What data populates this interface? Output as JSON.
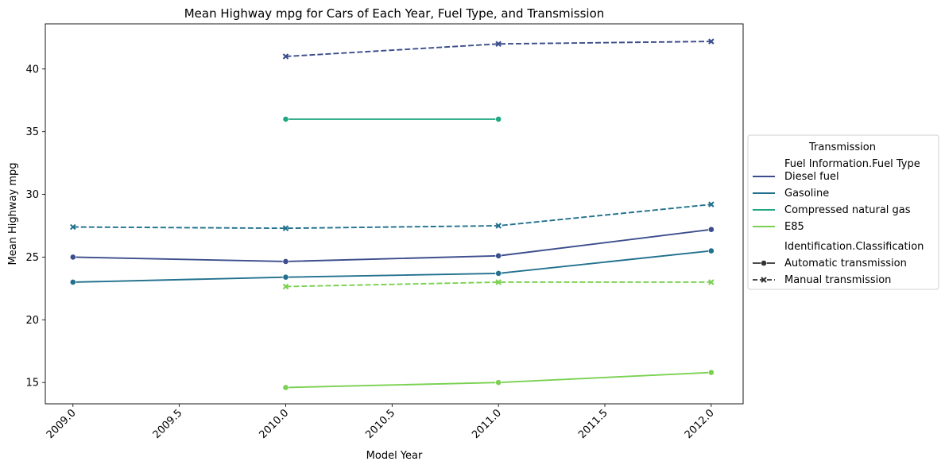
{
  "chart_data": {
    "type": "line",
    "title": "Mean Highway mpg for Cars of Each Year, Fuel Type, and Transmission",
    "xlabel": "Model Year",
    "ylabel": "Mean Highway mpg",
    "xlim": [
      2008.87,
      2012.15
    ],
    "ylim": [
      13.3,
      43.6
    ],
    "x_ticks": [
      2009.0,
      2009.5,
      2010.0,
      2010.5,
      2011.0,
      2011.5,
      2012.0
    ],
    "x_tick_labels": [
      "2009.0",
      "2009.5",
      "2010.0",
      "2010.5",
      "2011.0",
      "2011.5",
      "2012.0"
    ],
    "y_ticks": [
      15,
      20,
      25,
      30,
      35,
      40
    ],
    "y_tick_labels": [
      "15",
      "20",
      "25",
      "30",
      "35",
      "40"
    ],
    "grid": false,
    "legend": {
      "placement": "outside-right",
      "title": "Transmission",
      "hue_title": "Fuel Information.Fuel Type",
      "hue_entries": [
        {
          "label": "Diesel fuel",
          "color": "#3b4d8c"
        },
        {
          "label": "Gasoline",
          "color": "#21718e"
        },
        {
          "label": "Compressed natural gas",
          "color": "#1fa882"
        },
        {
          "label": "E85",
          "color": "#7ad151"
        }
      ],
      "style_title": "Identification.Classification",
      "style_entries": [
        {
          "label": "Automatic transmission",
          "dash": "solid",
          "marker": "circle"
        },
        {
          "label": "Manual transmission",
          "dash": "dashed",
          "marker": "x"
        }
      ]
    },
    "series": [
      {
        "fuel": "Diesel fuel",
        "transmission": "Automatic transmission",
        "color": "#3b4d8c",
        "dash": "solid",
        "marker": "circle",
        "points": [
          [
            2009,
            25.0
          ],
          [
            2010,
            24.65
          ],
          [
            2011,
            25.1
          ],
          [
            2012,
            27.2
          ]
        ]
      },
      {
        "fuel": "Diesel fuel",
        "transmission": "Manual transmission",
        "color": "#3b4d8c",
        "dash": "dashed",
        "marker": "x",
        "points": [
          [
            2010,
            41.0
          ],
          [
            2011,
            42.0
          ],
          [
            2012,
            42.2
          ]
        ]
      },
      {
        "fuel": "Gasoline",
        "transmission": "Automatic transmission",
        "color": "#21718e",
        "dash": "solid",
        "marker": "circle",
        "points": [
          [
            2009,
            23.0
          ],
          [
            2010,
            23.4
          ],
          [
            2011,
            23.7
          ],
          [
            2012,
            25.5
          ]
        ]
      },
      {
        "fuel": "Gasoline",
        "transmission": "Manual transmission",
        "color": "#21718e",
        "dash": "dashed",
        "marker": "x",
        "points": [
          [
            2009,
            27.4
          ],
          [
            2010,
            27.3
          ],
          [
            2011,
            27.5
          ],
          [
            2012,
            29.2
          ]
        ]
      },
      {
        "fuel": "Compressed natural gas",
        "transmission": "Automatic transmission",
        "color": "#1fa882",
        "dash": "solid",
        "marker": "circle",
        "points": [
          [
            2010,
            36.0
          ],
          [
            2011,
            36.0
          ]
        ]
      },
      {
        "fuel": "E85",
        "transmission": "Automatic transmission",
        "color": "#7ad151",
        "dash": "solid",
        "marker": "circle",
        "points": [
          [
            2010,
            14.6
          ],
          [
            2011,
            15.0
          ],
          [
            2012,
            15.8
          ]
        ]
      },
      {
        "fuel": "E85",
        "transmission": "Manual transmission",
        "color": "#7ad151",
        "dash": "dashed",
        "marker": "x",
        "points": [
          [
            2010,
            22.65
          ],
          [
            2011,
            23.0
          ],
          [
            2012,
            23.0
          ]
        ]
      }
    ]
  }
}
